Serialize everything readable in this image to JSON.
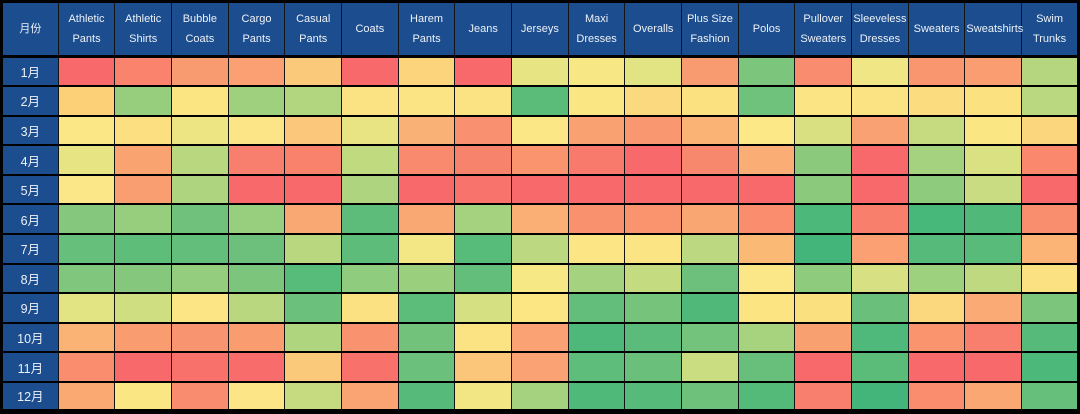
{
  "chart_data": {
    "type": "heatmap",
    "title": "",
    "corner_label": "月份",
    "x_categories": [
      "Athletic Pants",
      "Athletic Shirts",
      "Bubble Coats",
      "Cargo Pants",
      "Casual Pants",
      "Coats",
      "Harem Pants",
      "Jeans",
      "Jerseys",
      "Maxi Dresses",
      "Overalls",
      "Plus Size Fashion",
      "Polos",
      "Pullover Sweaters",
      "Sleeveless Dresses",
      "Sweaters",
      "Sweatshirts",
      "Swim Trunks"
    ],
    "y_categories": [
      "1月",
      "2月",
      "3月",
      "4月",
      "5月",
      "6月",
      "7月",
      "8月",
      "9月",
      "10月",
      "11月",
      "12月"
    ],
    "legend": "none",
    "grid": true,
    "color_scale": {
      "low_green": "#63BE7B",
      "mid_yellow": "#FFEB84",
      "high_red": "#F8696B"
    },
    "header_background": "#1C4E8F",
    "header_text_color": "#EDF1F7",
    "cell_colors": [
      [
        "#F8696B",
        "#F9836D",
        "#F99B70",
        "#FAA072",
        "#FBC97A",
        "#F8696B",
        "#FBD47C",
        "#F8696B",
        "#E6E483",
        "#F7E885",
        "#E2E383",
        "#F99B70",
        "#7BC57C",
        "#F98B6E",
        "#F0E685",
        "#F9966F",
        "#FA9D70",
        "#B5D67F"
      ],
      [
        "#FBD077",
        "#97CE7E",
        "#FBE482",
        "#9FD07E",
        "#B2D67F",
        "#FBE282",
        "#FBE484",
        "#FBE383",
        "#5BBC7A",
        "#FBE684",
        "#FBD97E",
        "#FBE180",
        "#6FC27B",
        "#FBE484",
        "#FBE383",
        "#FBDC7E",
        "#FBE17F",
        "#BAD87F"
      ],
      [
        "#FCE787",
        "#FBDF80",
        "#EDE584",
        "#FBE586",
        "#FBC77A",
        "#E9E483",
        "#FAB175",
        "#F9906F",
        "#FBE786",
        "#F9A171",
        "#F99870",
        "#FAB375",
        "#FCE886",
        "#D8E082",
        "#F9A173",
        "#C6DB80",
        "#FBE684",
        "#FBD67D"
      ],
      [
        "#E7E583",
        "#F9A371",
        "#B9D77F",
        "#F87E6D",
        "#F9826D",
        "#C0DA80",
        "#F98A6E",
        "#F8836D",
        "#F9946F",
        "#F87A6C",
        "#F8696B",
        "#F8886D",
        "#FAAD74",
        "#8BCA7D",
        "#F8696B",
        "#A5D27E",
        "#D9E182",
        "#F9886D"
      ],
      [
        "#FCE788",
        "#F99E71",
        "#AED47F",
        "#F8696B",
        "#F8696B",
        "#AED47F",
        "#F8696B",
        "#F8736B",
        "#F8696B",
        "#F8696B",
        "#F8696B",
        "#F8696B",
        "#F8696B",
        "#8BCA7D",
        "#F8696B",
        "#8FCB7D",
        "#C9DC81",
        "#F8696B"
      ],
      [
        "#85C87D",
        "#97CE7E",
        "#70C17B",
        "#98CF7E",
        "#FAA873",
        "#5DBC7A",
        "#FAA873",
        "#A4D27E",
        "#FAAF74",
        "#F9916F",
        "#F9946F",
        "#FAA673",
        "#F98D6E",
        "#4CB87A",
        "#F87F6C",
        "#48B77A",
        "#50B97A",
        "#F98E6E"
      ],
      [
        "#66BF7B",
        "#5FBD7A",
        "#63BE7B",
        "#6CC07B",
        "#B8D77F",
        "#5DBC7A",
        "#F2E784",
        "#57BB7A",
        "#BCD880",
        "#FBE585",
        "#FBE483",
        "#BCD880",
        "#FBB976",
        "#44B57A",
        "#FAA073",
        "#55BA7A",
        "#58BB7A",
        "#FBB376"
      ],
      [
        "#80C67C",
        "#85C87D",
        "#94CD7E",
        "#7CC57C",
        "#57BB7A",
        "#90CC7D",
        "#9ACF7E",
        "#63BE7B",
        "#F5E885",
        "#A5D27E",
        "#C4DB80",
        "#6DC07B",
        "#FBE787",
        "#8FCB7D",
        "#D7E082",
        "#9ED17E",
        "#BFD980",
        "#FBE181"
      ],
      [
        "#E2E383",
        "#CFDE81",
        "#FBE585",
        "#B8D77F",
        "#6BC07B",
        "#FBE181",
        "#5CBC7A",
        "#D4E081",
        "#FCE583",
        "#64BE7B",
        "#76C37C",
        "#50B97A",
        "#FCE483",
        "#FBE07F",
        "#6AC07B",
        "#FBD77D",
        "#FAAA75",
        "#7CC57C"
      ],
      [
        "#FBB375",
        "#F99C70",
        "#F99470",
        "#F99C70",
        "#B0D57F",
        "#F9926F",
        "#72C27C",
        "#FBE383",
        "#FAA273",
        "#4DB87A",
        "#5ABB7A",
        "#74C37C",
        "#A8D37E",
        "#F9A071",
        "#4EB97A",
        "#F9946F",
        "#F87E6D",
        "#55BA7A"
      ],
      [
        "#F98D6E",
        "#F8696B",
        "#F8716B",
        "#F86D6B",
        "#FBC97A",
        "#F8726B",
        "#6BC07B",
        "#FBC67A",
        "#FAA273",
        "#5EBD7A",
        "#6AC07B",
        "#CBDD81",
        "#67BF7B",
        "#F8696B",
        "#5BBC7A",
        "#F8696B",
        "#F8696B",
        "#4CB87A"
      ],
      [
        "#FAA973",
        "#FBE684",
        "#F98B6E",
        "#FBE586",
        "#C6DB80",
        "#FAA473",
        "#55BA7A",
        "#F2E684",
        "#A5D27E",
        "#4FB97A",
        "#55BA7A",
        "#6EC17B",
        "#54BA7A",
        "#F87E6D",
        "#43B57A",
        "#F98D6E",
        "#FAA773",
        "#66BF7B"
      ]
    ]
  }
}
